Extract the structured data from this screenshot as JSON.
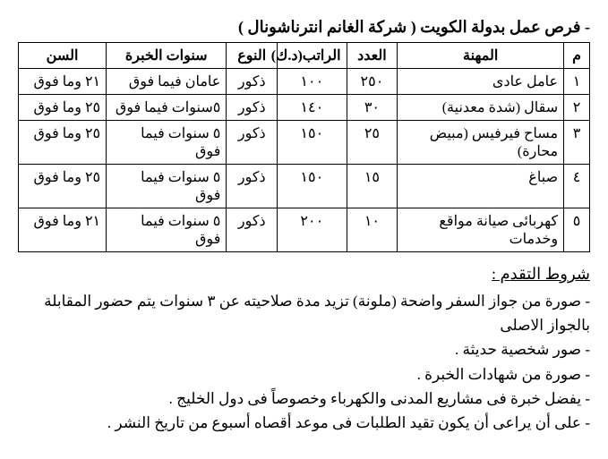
{
  "title": "- فرص عمل بدولة الكويت ( شركة الغانم انترناشونال )",
  "table": {
    "headers": {
      "m": "م",
      "job": "المهنة",
      "count": "العدد",
      "salary": "الراتب(د.ك)",
      "gender": "النوع",
      "exp": "سنوات الخبرة",
      "age": "السن"
    },
    "rows": [
      {
        "m": "١",
        "job": "عامل عادى",
        "count": "٢٥٠",
        "salary": "١٠٠",
        "gender": "ذكور",
        "exp": "عامان فيما فوق",
        "age": "٢١ وما فوق"
      },
      {
        "m": "٢",
        "job": "سقال (شدة معدنية)",
        "count": "٣٠",
        "salary": "١٤٠",
        "gender": "ذكور",
        "exp": "٥سنوات فيما فوق",
        "age": "٢٥ وما فوق"
      },
      {
        "m": "٣",
        "job": "مساح فيرفيس (مبيض محارة)",
        "count": "٢٥",
        "salary": "١٥٠",
        "gender": "ذكور",
        "exp": "٥ سنوات فيما فوق",
        "age": "٢٥ وما فوق"
      },
      {
        "m": "٤",
        "job": "صباغ",
        "count": "١٥",
        "salary": "١٥٠",
        "gender": "ذكور",
        "exp": "٥ سنوات فيما فوق",
        "age": "٢٥ وما فوق"
      },
      {
        "m": "٥",
        "job": "كهربائى صيانة مواقع وخدمات",
        "count": "١٠",
        "salary": "٢٠٠",
        "gender": "ذكور",
        "exp": "٥ سنوات فيما فوق",
        "age": "٢١ وما فوق"
      }
    ]
  },
  "conditions": {
    "heading": "شروط التقدم :",
    "items": [
      "- صورة من جواز السفر واضحة (ملونة) تزيد مدة صلاحيته عن ٣ سنوات يتم حضور المقابلة بالجواز الاصلى",
      "- صور شخصية حديثة .",
      "- صورة من شهادات الخبرة .",
      "- يفضل خبرة فى مشاريع المدنى والكهرباء وخصوصاً فى دول الخليج .",
      "- على أن يراعى أن يكون تقيد الطلبات فى موعد أقصاه أسبوع من تاريخ النشر ."
    ]
  }
}
